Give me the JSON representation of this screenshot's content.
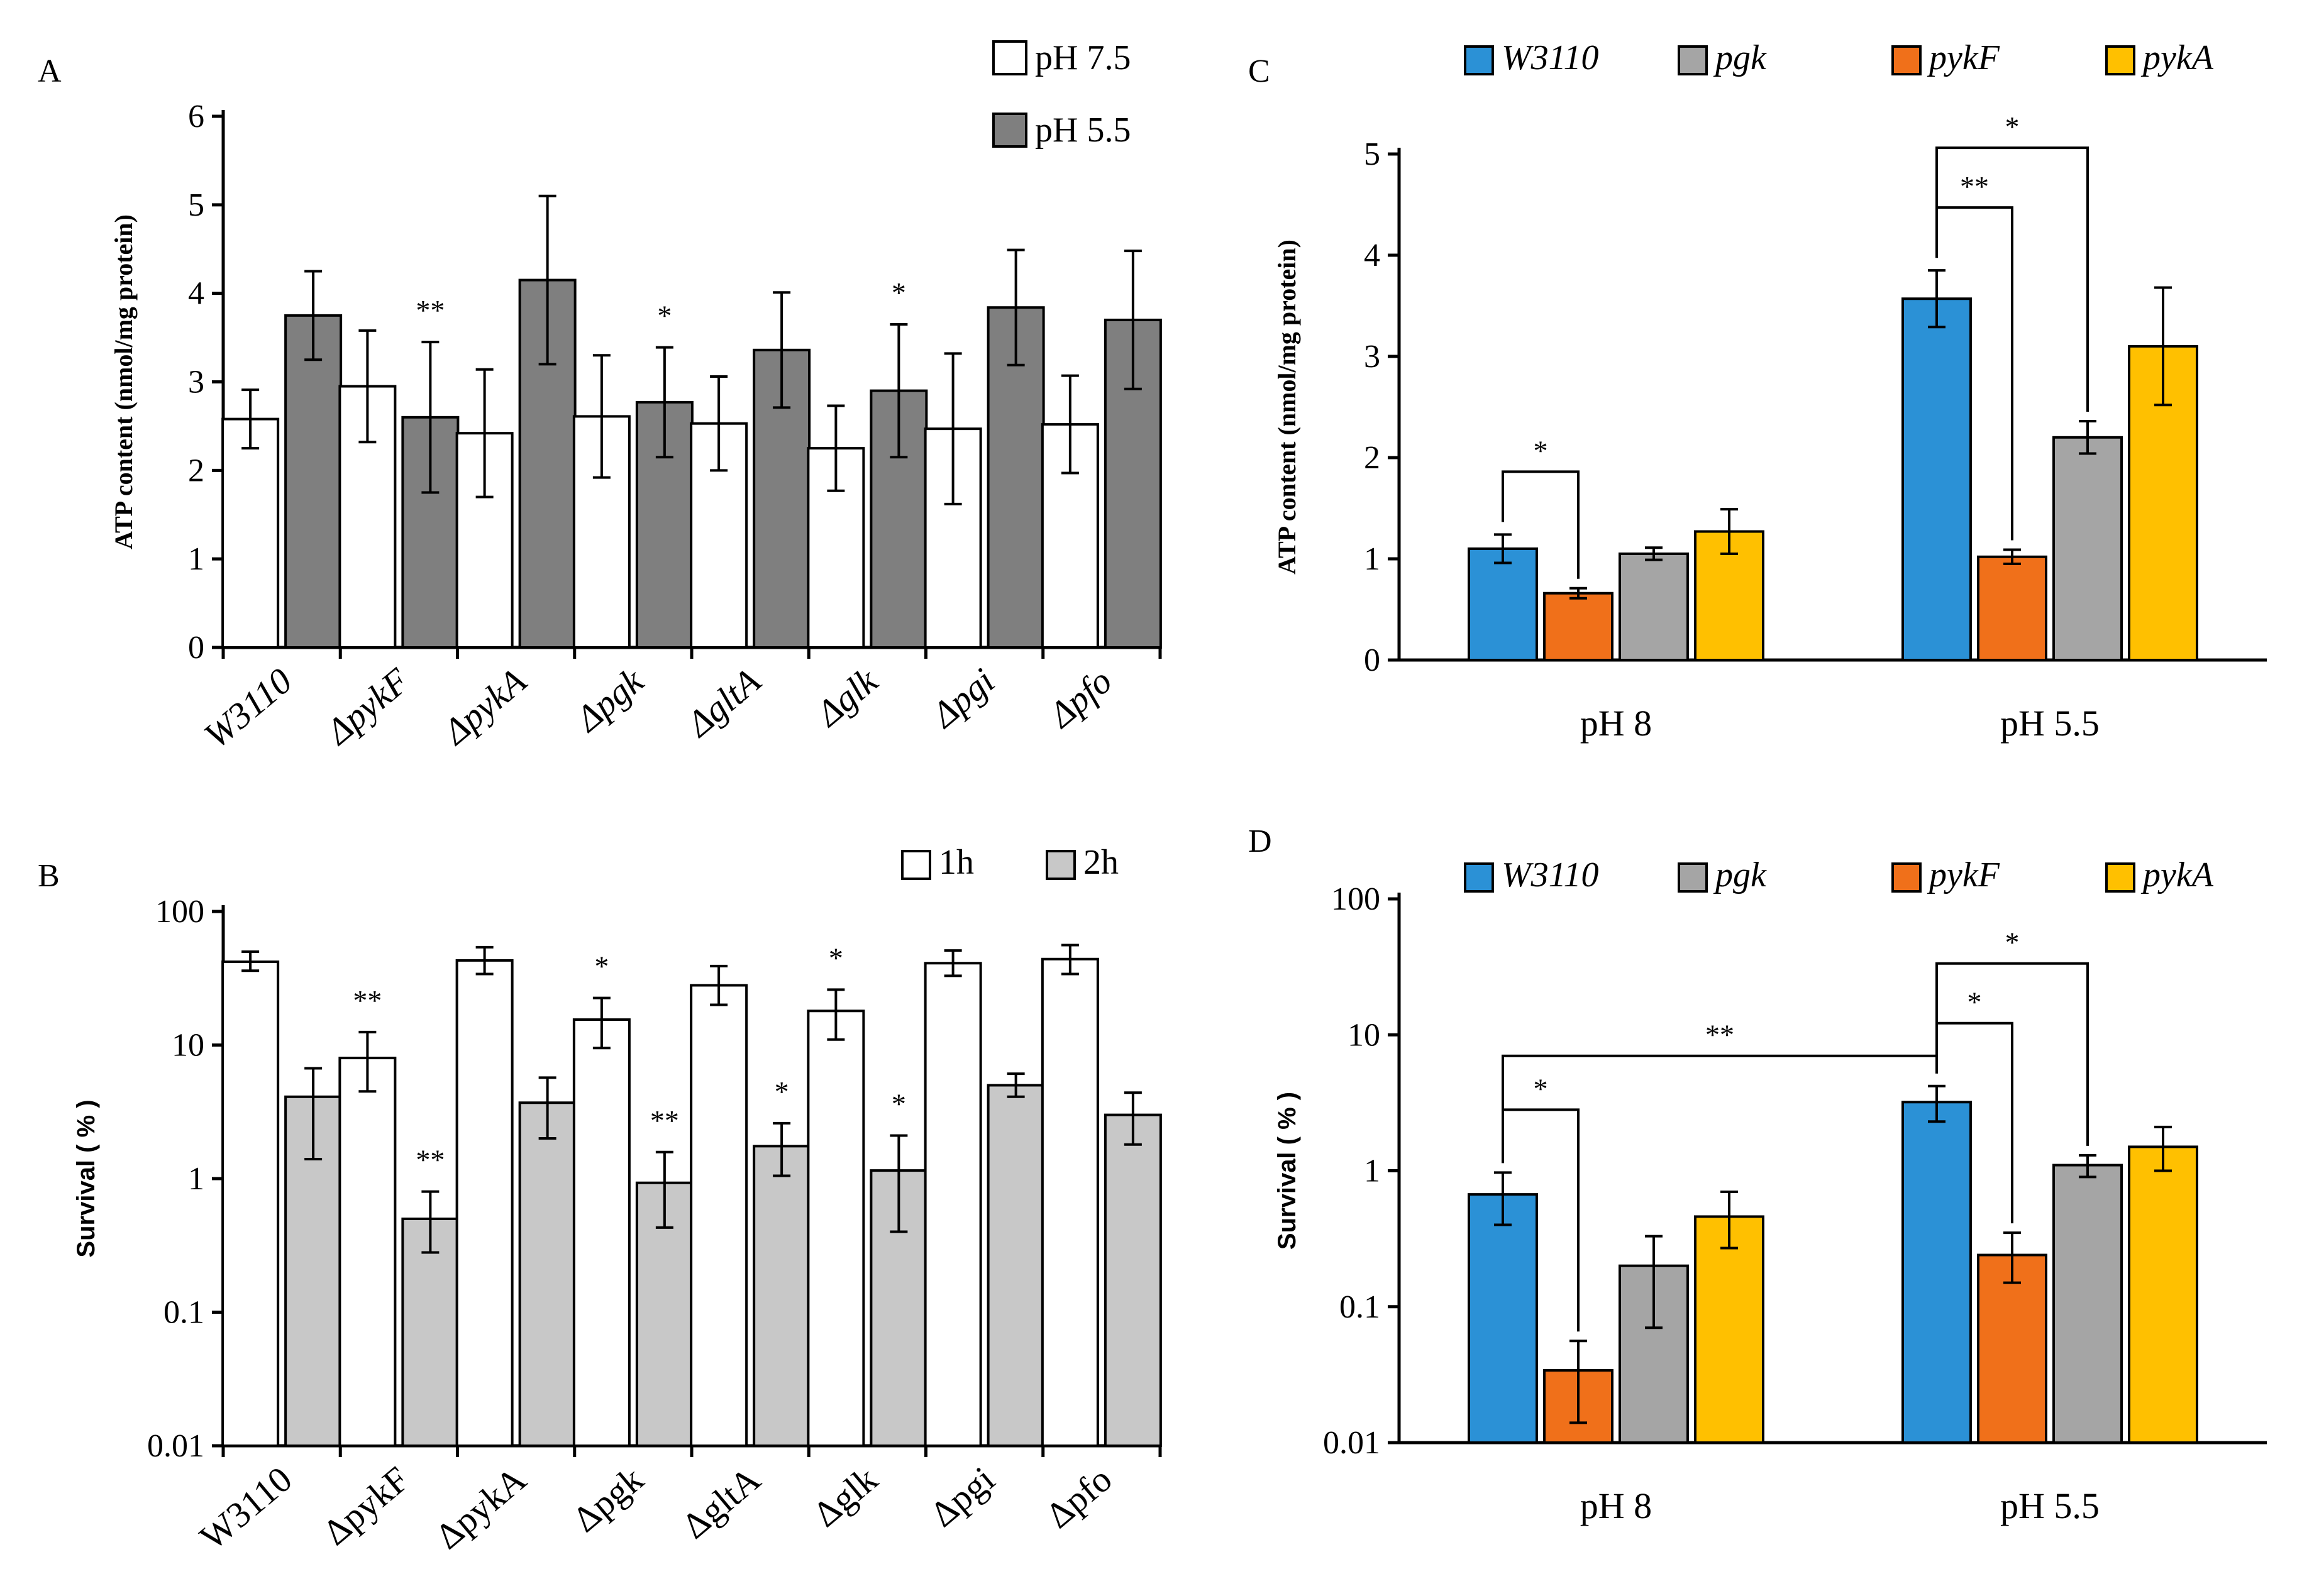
{
  "chart_data": [
    {
      "id": "A",
      "panel_label": "A",
      "type": "bar",
      "scale": "linear",
      "ylabel": "ATP content (nmol/mg protein)",
      "ylim": [
        0,
        6
      ],
      "yticks": [
        "0",
        "1",
        "2",
        "3",
        "4",
        "5",
        "6"
      ],
      "categories": [
        "W3110",
        "ΔpykF",
        "ΔpykA",
        "Δpgk",
        "ΔgltA",
        "Δglk",
        "Δpgi",
        "Δpfo"
      ],
      "category_style": "italic-rotated",
      "legend_position": "top-right",
      "series": [
        {
          "name": "pH 7.5",
          "color": "#ffffff",
          "values": [
            2.58,
            2.95,
            2.42,
            2.61,
            2.53,
            2.25,
            2.47,
            2.52
          ],
          "errors": [
            0.33,
            0.63,
            0.72,
            0.69,
            0.53,
            0.48,
            0.85,
            0.55
          ]
        },
        {
          "name": "pH 5.5",
          "color": "#7f7f7f",
          "values": [
            3.75,
            2.6,
            4.15,
            2.77,
            3.36,
            2.9,
            3.84,
            3.7
          ],
          "errors": [
            0.5,
            0.85,
            0.95,
            0.62,
            0.65,
            0.75,
            0.65,
            0.78
          ]
        }
      ],
      "annotations": [
        {
          "category": 1,
          "series": 1,
          "text": "**"
        },
        {
          "category": 3,
          "series": 1,
          "text": "*"
        },
        {
          "category": 5,
          "series": 1,
          "text": "*"
        }
      ]
    },
    {
      "id": "B",
      "panel_label": "B",
      "type": "bar",
      "scale": "log",
      "ylabel": "Survival ( % )",
      "ylim": [
        0.01,
        100
      ],
      "yticks": [
        "0.01",
        "0.1",
        "1",
        "10",
        "100"
      ],
      "categories": [
        "W3110",
        "ΔpykF",
        "ΔpykA",
        "Δpgk",
        "ΔgltA",
        "Δglk",
        "Δpgi",
        "Δpfo"
      ],
      "category_style": "rotated",
      "legend_position": "top-right",
      "series": [
        {
          "name": "1h",
          "color": "#ffffff",
          "values": [
            42,
            8,
            43,
            15.5,
            28,
            18,
            41,
            44
          ],
          "errors_low": [
            6,
            3.5,
            9,
            6,
            8,
            7,
            8,
            10
          ],
          "errors_high": [
            8,
            4.5,
            11,
            7,
            11,
            8,
            10,
            12
          ]
        },
        {
          "name": "2h",
          "color": "#c8c8c8",
          "values": [
            4.1,
            0.5,
            3.7,
            0.93,
            1.75,
            1.15,
            5.0,
            3.0
          ],
          "errors_low": [
            2.7,
            0.22,
            1.7,
            0.5,
            0.7,
            0.75,
            0.9,
            1.2
          ],
          "errors_high": [
            2.6,
            0.3,
            2.0,
            0.65,
            0.85,
            0.95,
            1.1,
            1.4
          ]
        }
      ],
      "annotations": [
        {
          "category": 1,
          "series": 0,
          "text": "**"
        },
        {
          "category": 1,
          "series": 1,
          "text": "**"
        },
        {
          "category": 3,
          "series": 0,
          "text": "*"
        },
        {
          "category": 3,
          "series": 1,
          "text": "**"
        },
        {
          "category": 4,
          "series": 1,
          "text": "*"
        },
        {
          "category": 5,
          "series": 0,
          "text": "*"
        },
        {
          "category": 5,
          "series": 1,
          "text": "*"
        }
      ]
    },
    {
      "id": "C",
      "panel_label": "C",
      "type": "bar",
      "scale": "linear",
      "ylabel": "ATP content (nmol/mg protein)",
      "ylim": [
        0,
        5
      ],
      "yticks": [
        "0",
        "1",
        "2",
        "3",
        "4",
        "5"
      ],
      "categories": [
        "pH 8",
        "pH 5.5"
      ],
      "legend_position": "top",
      "legend_order": [
        "W3110",
        "pgk",
        "pykF",
        "pykA"
      ],
      "series": [
        {
          "name": "W3110",
          "color": "#2b91d6",
          "values": [
            1.1,
            3.57
          ],
          "errors": [
            0.14,
            0.28
          ]
        },
        {
          "name": "pykF",
          "color": "#f0701a",
          "values": [
            0.66,
            1.02
          ],
          "errors": [
            0.05,
            0.07
          ]
        },
        {
          "name": "pgk",
          "color": "#a5a5a5",
          "values": [
            1.05,
            2.2
          ],
          "errors": [
            0.06,
            0.16
          ]
        },
        {
          "name": "pykA",
          "color": "#ffc000",
          "values": [
            1.27,
            3.1
          ],
          "errors": [
            0.22,
            0.58
          ]
        }
      ],
      "brackets": [
        {
          "group": 0,
          "from_series": 0,
          "to_series": 1,
          "text": "*"
        },
        {
          "group": 1,
          "from_series": 0,
          "to_series": 1,
          "text": "**"
        },
        {
          "group": 1,
          "from_series": 0,
          "to_series": 2,
          "text": "*"
        }
      ]
    },
    {
      "id": "D",
      "panel_label": "D",
      "type": "bar",
      "scale": "log",
      "ylabel": "Survival ( % )",
      "ylim": [
        0.01,
        100
      ],
      "yticks": [
        "0.01",
        "0.1",
        "1",
        "10",
        "100"
      ],
      "categories": [
        "pH 8",
        "pH 5.5"
      ],
      "legend_position": "top",
      "legend_order": [
        "W3110",
        "pgk",
        "pykF",
        "pykA"
      ],
      "series": [
        {
          "name": "W3110",
          "color": "#2b91d6",
          "values": [
            0.67,
            3.2
          ],
          "errors_low": [
            0.27,
            0.9
          ],
          "errors_high": [
            0.3,
            1.0
          ]
        },
        {
          "name": "pykF",
          "color": "#f0701a",
          "values": [
            0.034,
            0.24
          ],
          "errors_low": [
            0.02,
            0.09
          ],
          "errors_high": [
            0.022,
            0.11
          ]
        },
        {
          "name": "pgk",
          "color": "#a5a5a5",
          "values": [
            0.2,
            1.1
          ],
          "errors_low": [
            0.13,
            0.2
          ],
          "errors_high": [
            0.13,
            0.2
          ]
        },
        {
          "name": "pykA",
          "color": "#ffc000",
          "values": [
            0.46,
            1.5
          ],
          "errors_low": [
            0.19,
            0.5
          ],
          "errors_high": [
            0.24,
            0.6
          ]
        }
      ],
      "brackets": [
        {
          "group": 0,
          "from_series": 0,
          "to_series": 1,
          "text": "*"
        },
        {
          "group": 1,
          "from_series": 0,
          "to_series": 1,
          "text": "*"
        },
        {
          "group": 1,
          "from_series": 0,
          "to_series": 2,
          "text": "*"
        }
      ],
      "cross_brackets": [
        {
          "from_group": 0,
          "to_group": 1,
          "series": 0,
          "text": "**"
        }
      ]
    }
  ]
}
